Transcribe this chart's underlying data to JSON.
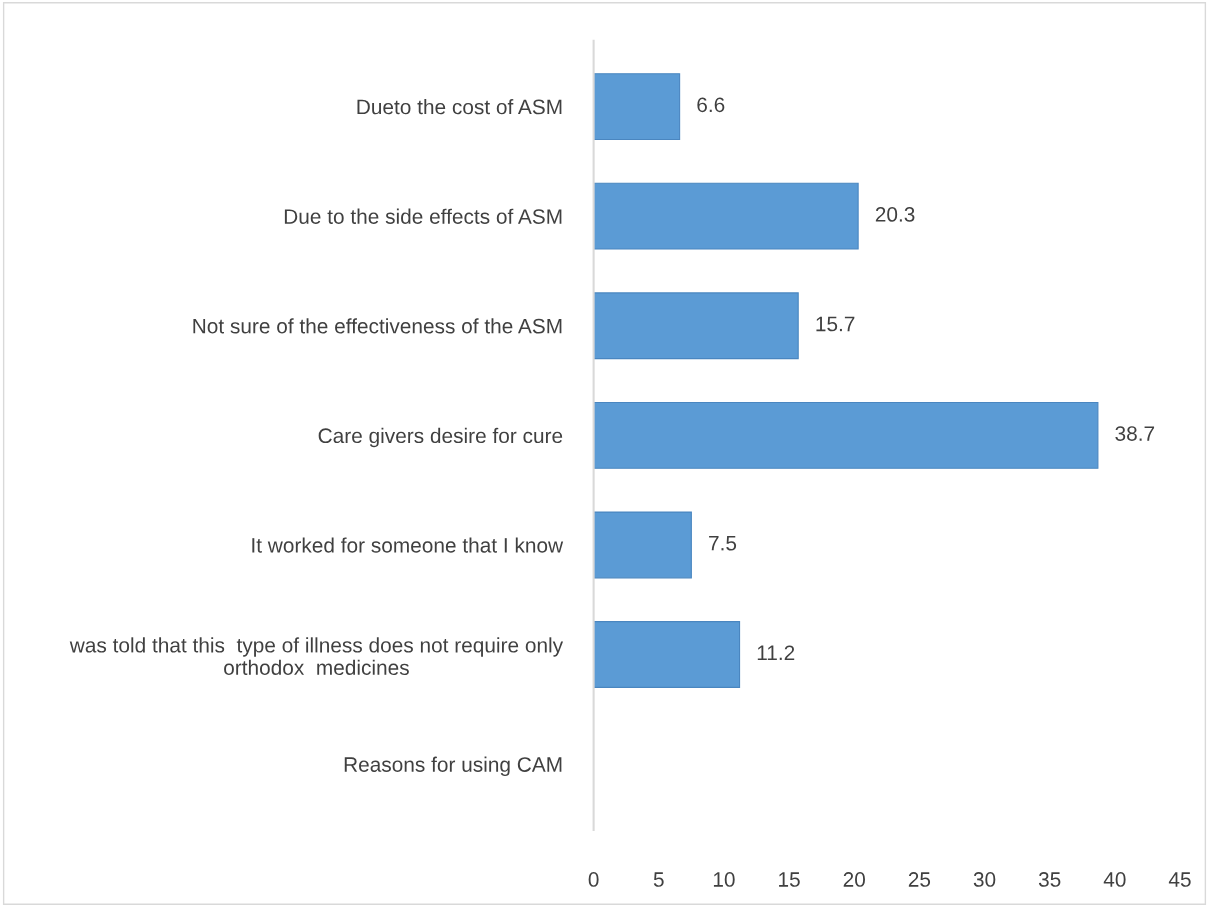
{
  "chart_data": {
    "type": "bar",
    "orientation": "horizontal",
    "categories": [
      "Dueto the cost of ASM",
      "Due to the side effects of ASM",
      "Not sure of the effectiveness of the ASM",
      "Care givers desire for cure",
      "It worked for someone that I know",
      "was told that this  type of illness does not require only\northodox  medicines",
      "Reasons for using CAM"
    ],
    "values": [
      6.6,
      20.3,
      15.7,
      38.7,
      7.5,
      11.2,
      null
    ],
    "color": "#5b9bd5",
    "xlim": [
      0,
      45
    ],
    "xticks": [
      0,
      5,
      10,
      15,
      20,
      25,
      30,
      35,
      40,
      45
    ],
    "data_labels": true,
    "grid": false,
    "legend": false
  }
}
